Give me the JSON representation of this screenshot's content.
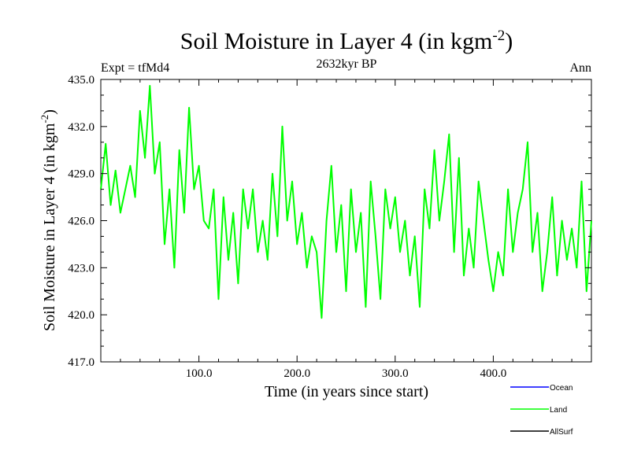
{
  "chart_data": {
    "type": "line",
    "title": "Soil Moisture in Layer 4 (in kgm",
    "title_sup": "-2",
    "title_close": ")",
    "subtitle": "2632kyr BP",
    "left_label": "Expt = tfMd4",
    "right_label": "Ann",
    "xlabel": "Time (in years since start)",
    "ylabel": "Soil Moisture in Layer 4 (in kgm",
    "ylabel_sup": "-2",
    "ylabel_close": ")",
    "xlim": [
      0,
      500
    ],
    "ylim": [
      417,
      435
    ],
    "x_ticks": [
      100,
      200,
      300,
      400
    ],
    "x_tick_labels": [
      "100.0",
      "200.0",
      "300.0",
      "400.0"
    ],
    "y_ticks": [
      417,
      420,
      423,
      426,
      429,
      432,
      435
    ],
    "y_tick_labels": [
      "417.0",
      "420.0",
      "423.0",
      "426.0",
      "429.0",
      "432.0",
      "435.0"
    ],
    "legend": [
      {
        "name": "Ocean",
        "color": "#0000ff"
      },
      {
        "name": "Land",
        "color": "#00ff00"
      },
      {
        "name": "AllSurf",
        "color": "#000000"
      }
    ],
    "series": [
      {
        "name": "Land",
        "color": "#00ff00",
        "x": [
          0,
          5,
          10,
          15,
          20,
          25,
          30,
          35,
          40,
          45,
          50,
          55,
          60,
          65,
          70,
          75,
          80,
          85,
          90,
          95,
          100,
          105,
          110,
          115,
          120,
          125,
          130,
          135,
          140,
          145,
          150,
          155,
          160,
          165,
          170,
          175,
          180,
          185,
          190,
          195,
          200,
          205,
          210,
          215,
          220,
          225,
          230,
          235,
          240,
          245,
          250,
          255,
          260,
          265,
          270,
          275,
          280,
          285,
          290,
          295,
          300,
          305,
          310,
          315,
          320,
          325,
          330,
          335,
          340,
          345,
          350,
          355,
          360,
          365,
          370,
          375,
          380,
          385,
          390,
          395,
          400,
          405,
          410,
          415,
          420,
          425,
          430,
          435,
          440,
          445,
          450,
          455,
          460,
          465,
          470,
          475,
          480,
          485,
          490,
          495,
          500
        ],
        "values": [
          428.0,
          430.9,
          427.0,
          429.2,
          426.5,
          428.0,
          429.5,
          427.5,
          433.0,
          430.0,
          434.6,
          429.0,
          431.0,
          424.5,
          428.0,
          423.0,
          430.5,
          426.5,
          433.2,
          428.0,
          429.5,
          426.0,
          425.5,
          428.0,
          421.0,
          427.5,
          423.5,
          426.5,
          422.0,
          428.0,
          425.5,
          428.0,
          424.0,
          426.0,
          423.5,
          429.0,
          425.0,
          432.0,
          426.0,
          428.5,
          424.5,
          426.5,
          423.0,
          425.0,
          424.0,
          419.8,
          426.0,
          429.5,
          424.0,
          427.0,
          421.5,
          428.0,
          424.0,
          426.5,
          420.5,
          428.5,
          425.0,
          421.0,
          428.0,
          425.5,
          427.5,
          424.0,
          426.0,
          422.5,
          425.0,
          420.5,
          428.0,
          425.5,
          430.5,
          426.0,
          428.5,
          431.5,
          424.0,
          430.0,
          422.5,
          425.5,
          423.0,
          428.5,
          426.0,
          423.5,
          421.5,
          424.0,
          422.5,
          428.0,
          424.0,
          426.5,
          428.0,
          431.0,
          424.0,
          426.5,
          421.5,
          424.0,
          427.5,
          422.5,
          426.0,
          423.5,
          425.5,
          423.0,
          428.5,
          421.5,
          426.0
        ]
      }
    ]
  }
}
